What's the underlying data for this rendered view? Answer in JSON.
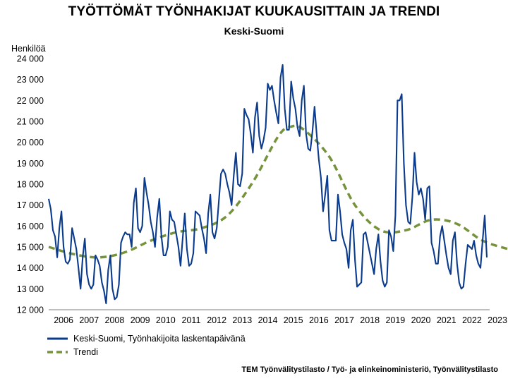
{
  "chart_data": {
    "type": "line",
    "title": "TYÖTTÖMÄT TYÖNHAKIJAT KUUKAUSITTAIN JA TRENDI",
    "subtitle": "Keski-Suomi",
    "ylabel": "Henkilöä",
    "ylim": [
      12000,
      24000
    ],
    "yticks": [
      12000,
      13000,
      14000,
      15000,
      16000,
      17000,
      18000,
      19000,
      20000,
      21000,
      22000,
      23000,
      24000
    ],
    "ytick_labels": [
      "12 000",
      "13 000",
      "14 000",
      "15 000",
      "16 000",
      "17 000",
      "18 000",
      "19 000",
      "20 000",
      "21 000",
      "22 000",
      "23 000",
      "24 000"
    ],
    "x_labels": [
      "2006",
      "2007",
      "2008",
      "2009",
      "2010",
      "2011",
      "2012",
      "2013",
      "2014",
      "2015",
      "2016",
      "2017",
      "2018",
      "2019",
      "2020",
      "2021",
      "2022",
      "2023"
    ],
    "x_start_year": 2005,
    "x_start_month": 12,
    "grid": false,
    "legend_position": "bottom-left",
    "series": [
      {
        "name": "Keski-Suomi, Työnhakijoita laskentapäivänä",
        "color": "#0b3b8c",
        "style": "solid",
        "values": [
          17300,
          16800,
          15800,
          15500,
          14500,
          15900,
          16700,
          15000,
          14300,
          14200,
          14400,
          15900,
          15400,
          14900,
          14000,
          13000,
          14500,
          15400,
          13700,
          13200,
          13000,
          13200,
          14600,
          14400,
          14100,
          13300,
          12900,
          12300,
          13900,
          14600,
          13000,
          12500,
          12600,
          13200,
          15200,
          15500,
          15700,
          15600,
          15600,
          15000,
          17100,
          17800,
          15900,
          15700,
          16000,
          18300,
          17600,
          17000,
          16200,
          15700,
          15000,
          16400,
          17300,
          15500,
          14600,
          14600,
          15000,
          16700,
          16300,
          16200,
          15600,
          15000,
          14100,
          15400,
          16600,
          14900,
          14100,
          14200,
          14700,
          16700,
          16600,
          16500,
          15900,
          15400,
          14700,
          16600,
          17500,
          15700,
          15400,
          15900,
          17200,
          18500,
          18700,
          18500,
          18000,
          17600,
          17000,
          18400,
          19500,
          18000,
          17900,
          18500,
          21600,
          21300,
          21100,
          20400,
          19500,
          21200,
          21900,
          20300,
          19700,
          20100,
          20700,
          22800,
          22500,
          22700,
          22000,
          21400,
          20900,
          23100,
          23700,
          21600,
          20600,
          20600,
          22900,
          22100,
          21600,
          20700,
          20300,
          22000,
          22700,
          20400,
          19700,
          19600,
          20500,
          21700,
          20400,
          19200,
          18300,
          16700,
          17500,
          18400,
          15800,
          15300,
          15300,
          15300,
          17500,
          16700,
          15600,
          15200,
          14900,
          14000,
          15800,
          16300,
          14400,
          13100,
          13200,
          13300,
          15600,
          15700,
          15200,
          14700,
          14200,
          13700,
          14900,
          15600,
          14300,
          13400,
          13100,
          13300,
          15800,
          15500,
          14800,
          16500,
          22000,
          22000,
          22300,
          19000,
          17000,
          16200,
          16100,
          17400,
          19500,
          18100,
          17500,
          17800,
          17300,
          16300,
          17800,
          17900,
          15200,
          14800,
          14200,
          14200,
          15500,
          16000,
          15300,
          14600,
          14000,
          13700,
          15300,
          15700,
          14200,
          13300,
          13000,
          13100,
          14200,
          15100,
          15000,
          14900,
          15300,
          14600,
          14200,
          14000,
          15300,
          16500,
          14500
        ]
      },
      {
        "name": "Trendi",
        "color": "#76933c",
        "style": "dashed",
        "anchors": [
          [
            0,
            15000
          ],
          [
            12,
            14650
          ],
          [
            24,
            14500
          ],
          [
            36,
            14750
          ],
          [
            48,
            15300
          ],
          [
            60,
            15700
          ],
          [
            72,
            15900
          ],
          [
            84,
            16500
          ],
          [
            96,
            18100
          ],
          [
            108,
            20300
          ],
          [
            114,
            20750
          ],
          [
            120,
            20600
          ],
          [
            132,
            19300
          ],
          [
            144,
            17000
          ],
          [
            156,
            15800
          ],
          [
            168,
            15800
          ],
          [
            180,
            16300
          ],
          [
            192,
            16100
          ],
          [
            204,
            15300
          ],
          [
            216,
            14900
          ],
          [
            218,
            14850
          ]
        ]
      }
    ],
    "source": "TEM Työnvälitystilasto / Työ- ja elinkeinoministeriö, Työnvälitystilasto"
  }
}
